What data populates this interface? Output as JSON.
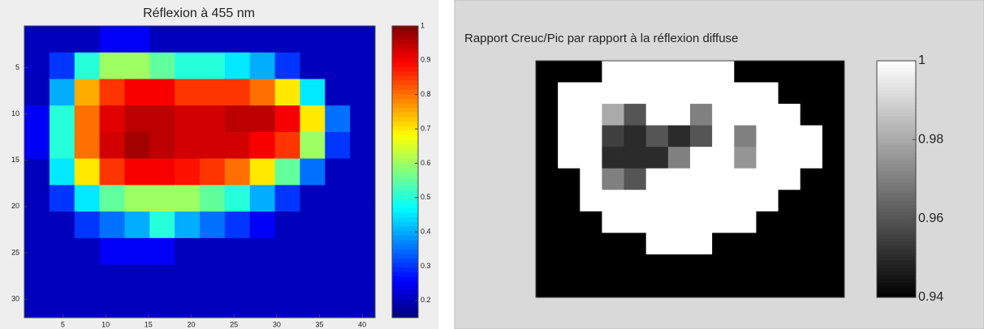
{
  "chart_data": [
    {
      "type": "heatmap",
      "title": "Réflexion à 455 nm",
      "colormap": "jet",
      "xlim": [
        0.5,
        41.5
      ],
      "ylim": [
        0.5,
        32
      ],
      "xticks": [
        5,
        10,
        15,
        20,
        25,
        30,
        35,
        40
      ],
      "yticks": [
        5,
        10,
        15,
        20,
        25,
        30
      ],
      "clim": [
        0.15,
        1
      ],
      "cticks": [
        {
          "value": 0.2,
          "label": "0.2"
        },
        {
          "value": 0.3,
          "label": "0.3"
        },
        {
          "value": 0.4,
          "label": "0.4"
        },
        {
          "value": 0.5,
          "label": "0.5"
        },
        {
          "value": 0.6,
          "label": "0.6"
        },
        {
          "value": 0.7,
          "label": "0.7"
        },
        {
          "value": 0.8,
          "label": "0.8"
        },
        {
          "value": 0.9,
          "label": "0.9"
        },
        1
      ],
      "z": [
        [
          0.2,
          0.2,
          0.2,
          0.25,
          0.25,
          0.2,
          0.2,
          0.2,
          0.2,
          0.2,
          0.2,
          0.2,
          0.2,
          0.2
        ],
        [
          0.2,
          0.3,
          0.5,
          0.6,
          0.6,
          0.55,
          0.5,
          0.5,
          0.45,
          0.4,
          0.3,
          0.2,
          0.2,
          0.2
        ],
        [
          0.2,
          0.4,
          0.75,
          0.85,
          0.9,
          0.9,
          0.85,
          0.85,
          0.85,
          0.8,
          0.7,
          0.45,
          0.2,
          0.2
        ],
        [
          0.25,
          0.5,
          0.8,
          0.92,
          0.95,
          0.95,
          0.93,
          0.93,
          0.95,
          0.95,
          0.9,
          0.7,
          0.35,
          0.2
        ],
        [
          0.25,
          0.5,
          0.8,
          0.93,
          0.97,
          0.95,
          0.93,
          0.93,
          0.93,
          0.9,
          0.85,
          0.6,
          0.3,
          0.2
        ],
        [
          0.2,
          0.45,
          0.7,
          0.85,
          0.9,
          0.9,
          0.88,
          0.85,
          0.8,
          0.7,
          0.55,
          0.35,
          0.2,
          0.2
        ],
        [
          0.2,
          0.3,
          0.45,
          0.55,
          0.6,
          0.6,
          0.6,
          0.55,
          0.5,
          0.4,
          0.3,
          0.2,
          0.2,
          0.2
        ],
        [
          0.2,
          0.2,
          0.3,
          0.35,
          0.4,
          0.5,
          0.4,
          0.35,
          0.3,
          0.25,
          0.2,
          0.2,
          0.2,
          0.2
        ],
        [
          0.2,
          0.2,
          0.2,
          0.25,
          0.25,
          0.25,
          0.2,
          0.2,
          0.2,
          0.2,
          0.2,
          0.2,
          0.2,
          0.2
        ],
        [
          0.2,
          0.2,
          0.2,
          0.2,
          0.2,
          0.2,
          0.2,
          0.2,
          0.2,
          0.2,
          0.2,
          0.2,
          0.2,
          0.2
        ],
        [
          0.2,
          0.2,
          0.2,
          0.2,
          0.2,
          0.2,
          0.2,
          0.2,
          0.2,
          0.2,
          0.2,
          0.2,
          0.2,
          0.2
        ]
      ]
    },
    {
      "type": "heatmap",
      "title": "Rapport Creuc/Pic par rapport à la réflexion diffuse",
      "colormap": "gray",
      "clim": [
        0.94,
        1
      ],
      "cticks": [
        0.94,
        0.96,
        0.98,
        1
      ],
      "z": [
        [
          0.94,
          0.94,
          0.94,
          1,
          1,
          1,
          1,
          1,
          1,
          0.94,
          0.94,
          0.94,
          0.94,
          0.94
        ],
        [
          0.94,
          1,
          1,
          1,
          1,
          1,
          1,
          1,
          1,
          1,
          1,
          0.94,
          0.94,
          0.94
        ],
        [
          0.94,
          1,
          1,
          0.98,
          0.96,
          1,
          1,
          0.97,
          1,
          1,
          1,
          1,
          0.94,
          0.94
        ],
        [
          0.94,
          1,
          1,
          0.955,
          0.95,
          0.96,
          0.95,
          0.96,
          1,
          0.97,
          1,
          1,
          1,
          0.94
        ],
        [
          0.94,
          1,
          1,
          0.95,
          0.95,
          0.95,
          0.97,
          1,
          1,
          0.975,
          1,
          1,
          1,
          0.94
        ],
        [
          0.94,
          0.94,
          1,
          0.97,
          0.96,
          1,
          1,
          1,
          1,
          1,
          1,
          1,
          0.94,
          0.94
        ],
        [
          0.94,
          0.94,
          1,
          1,
          1,
          1,
          1,
          1,
          1,
          1,
          1,
          0.94,
          0.94,
          0.94
        ],
        [
          0.94,
          0.94,
          0.94,
          1,
          1,
          1,
          1,
          1,
          1,
          1,
          0.94,
          0.94,
          0.94,
          0.94
        ],
        [
          0.94,
          0.94,
          0.94,
          0.94,
          0.94,
          1,
          1,
          1,
          0.94,
          0.94,
          0.94,
          0.94,
          0.94,
          0.94
        ],
        [
          0.94,
          0.94,
          0.94,
          0.94,
          0.94,
          0.94,
          0.94,
          0.94,
          0.94,
          0.94,
          0.94,
          0.94,
          0.94,
          0.94
        ],
        [
          0.94,
          0.94,
          0.94,
          0.94,
          0.94,
          0.94,
          0.94,
          0.94,
          0.94,
          0.94,
          0.94,
          0.94,
          0.94,
          0.94
        ]
      ]
    }
  ]
}
